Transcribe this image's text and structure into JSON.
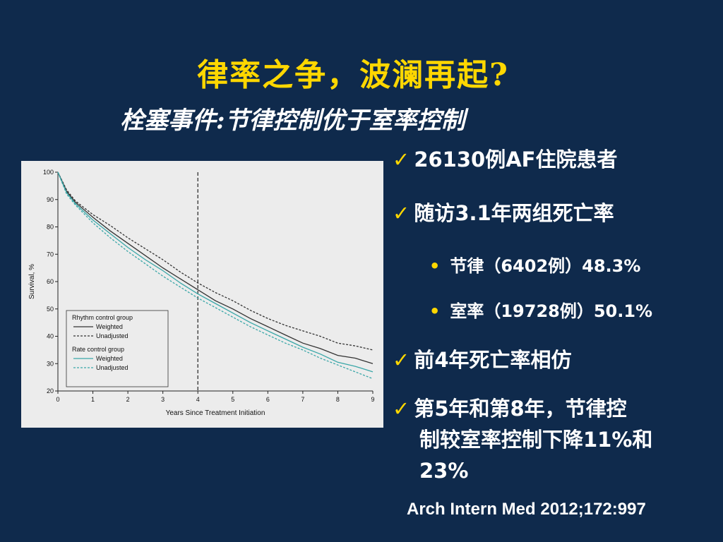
{
  "slide": {
    "title": "律率之争，波澜再起?",
    "subtitle": "栓塞事件:节律控制优于室率控制",
    "bullets": [
      {
        "text": "26130例AF住院患者"
      },
      {
        "text": "随访3.1年两组死亡率"
      },
      {
        "text": "节律（6402例）48.3%"
      },
      {
        "text": "室率（19728例）50.1%"
      },
      {
        "text": "前4年死亡率相仿"
      },
      {
        "line1": "第5年和第8年，节律控",
        "line2": "制较室率控制下降11%和",
        "line3": "23%"
      }
    ],
    "reference": "Arch Intern Med 2012;172:997"
  },
  "colors": {
    "background": "#0f2a4c",
    "title": "#ffd700",
    "rhythm": "#333333",
    "rate": "#3aa7a8"
  },
  "chart_data": {
    "type": "line",
    "xlabel": "Years Since Treatment Initiation",
    "ylabel": "Survival, %",
    "xlim": [
      0,
      9
    ],
    "ylim": [
      20,
      100
    ],
    "xticks": [
      0,
      1,
      2,
      3,
      4,
      5,
      6,
      7,
      8,
      9
    ],
    "yticks": [
      20,
      30,
      40,
      50,
      60,
      70,
      80,
      90,
      100
    ],
    "vline_x": 4,
    "x": [
      0,
      0.25,
      0.5,
      1,
      1.5,
      2,
      2.5,
      3,
      3.5,
      4,
      4.5,
      5,
      5.5,
      6,
      6.5,
      7,
      7.5,
      8,
      8.5,
      9
    ],
    "series": [
      {
        "name": "Weighted",
        "group": "rhythm",
        "dash": false,
        "values": [
          100,
          93,
          89,
          83.5,
          78.5,
          74,
          69.5,
          65,
          61,
          57,
          53,
          50,
          46.5,
          43.5,
          40.5,
          37.5,
          35.5,
          33,
          32,
          30
        ]
      },
      {
        "name": "Unadjusted",
        "group": "rhythm",
        "dash": true,
        "values": [
          100,
          93.5,
          89.5,
          84.5,
          80.5,
          76,
          72,
          68,
          63.5,
          59.5,
          56,
          53,
          49.5,
          46.5,
          44,
          42,
          40,
          37.5,
          36.5,
          35
        ]
      },
      {
        "name": "Weighted",
        "group": "rate",
        "dash": false,
        "values": [
          100,
          92.5,
          88.5,
          82.5,
          77.5,
          72.5,
          68,
          64,
          59.5,
          55.5,
          52,
          48.5,
          45,
          42,
          39,
          36,
          33.5,
          30.5,
          29,
          27
        ]
      },
      {
        "name": "Unadjusted",
        "group": "rate",
        "dash": true,
        "values": [
          100,
          92,
          88,
          81.5,
          76,
          71,
          66.5,
          62,
          58,
          54,
          50.5,
          47,
          43.5,
          40.5,
          37.5,
          35,
          32,
          29.5,
          27,
          24.5
        ]
      }
    ],
    "legend": {
      "groups": [
        {
          "title": "Rhythm control group",
          "items": [
            "Weighted",
            "Unadjusted"
          ]
        },
        {
          "title": "Rate control group",
          "items": [
            "Weighted",
            "Unadjusted"
          ]
        }
      ]
    }
  }
}
